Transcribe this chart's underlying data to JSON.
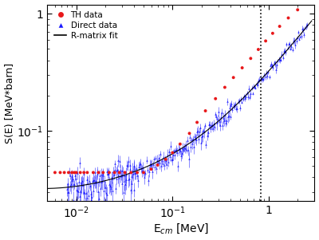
{
  "title": "",
  "xlabel": "E$_{cm}$ [MeV]",
  "ylabel": "S(E) [MeV*barn]",
  "xlim": [
    0.005,
    3.0
  ],
  "ylim": [
    0.025,
    1.2
  ],
  "vline_x": 0.83,
  "legend_entries": [
    "TH data",
    "Direct data",
    "R-matrix fit"
  ],
  "th_color": "#e8181a",
  "direct_color": "#1a1aff",
  "fit_color": "#000000",
  "background_color": "#ffffff",
  "th_points_x": [
    0.006,
    0.0068,
    0.0075,
    0.0083,
    0.009,
    0.0095,
    0.01,
    0.011,
    0.012,
    0.013,
    0.015,
    0.017,
    0.019,
    0.022,
    0.025,
    0.028,
    0.032,
    0.037,
    0.043,
    0.05,
    0.06,
    0.07,
    0.085,
    0.1,
    0.12,
    0.15,
    0.18,
    0.22,
    0.28,
    0.35,
    0.43,
    0.53,
    0.65,
    0.78,
    0.93,
    1.1,
    1.3,
    1.6,
    2.0
  ],
  "th_points_y": [
    0.044,
    0.044,
    0.044,
    0.044,
    0.044,
    0.044,
    0.044,
    0.044,
    0.044,
    0.044,
    0.044,
    0.044,
    0.044,
    0.044,
    0.044,
    0.044,
    0.044,
    0.044,
    0.044,
    0.044,
    0.047,
    0.051,
    0.057,
    0.065,
    0.077,
    0.095,
    0.118,
    0.148,
    0.188,
    0.235,
    0.285,
    0.345,
    0.415,
    0.495,
    0.585,
    0.68,
    0.78,
    0.92,
    1.08
  ]
}
